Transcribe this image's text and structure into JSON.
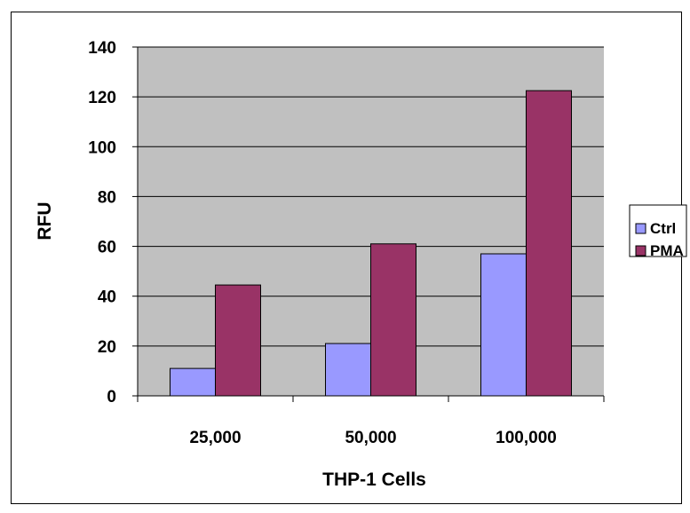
{
  "chart_data": {
    "type": "bar",
    "categories": [
      "25,000",
      "50,000",
      "100,000"
    ],
    "series": [
      {
        "name": "Ctrl",
        "values": [
          11,
          21,
          57
        ],
        "color": "#9999ff"
      },
      {
        "name": "PMA",
        "values": [
          44.5,
          61,
          122.5
        ],
        "color": "#993366"
      }
    ],
    "xlabel": "THP-1 Cells",
    "ylabel": "RFU",
    "ylim": [
      0,
      140
    ],
    "yticks": [
      0,
      20,
      40,
      60,
      80,
      100,
      120,
      140
    ],
    "grid": true,
    "plot_background": "#c0c0c0",
    "legend": "right"
  }
}
